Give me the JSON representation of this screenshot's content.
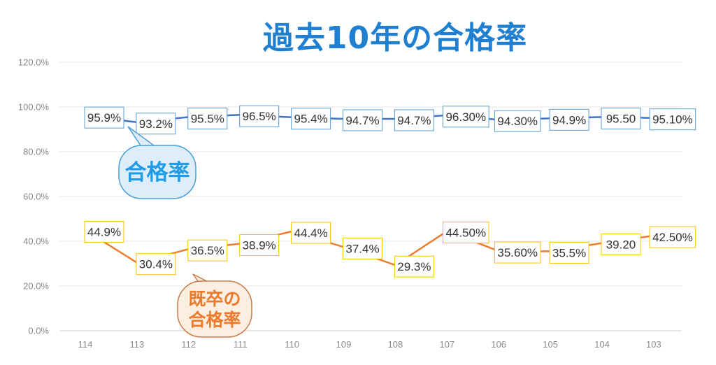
{
  "chart_data": {
    "type": "line",
    "title": "過去10年の合格率",
    "categories": [
      "114",
      "113",
      "112",
      "111",
      "110",
      "109",
      "108",
      "107",
      "106",
      "105",
      "104",
      "103"
    ],
    "ylim": [
      0,
      120
    ],
    "yticks": [
      "0.0%",
      "20.0%",
      "40.0%",
      "60.0%",
      "80.0%",
      "100.0%",
      "120.0%"
    ],
    "grid": true,
    "series": [
      {
        "name": "合格率",
        "color": "#4472c4",
        "label_border": "#5b9bd5",
        "values": [
          95.9,
          93.2,
          95.5,
          96.5,
          95.4,
          94.7,
          94.7,
          96.3,
          94.3,
          94.9,
          95.5,
          95.1
        ],
        "labels": [
          "95.9%",
          "93.2%",
          "95.5%",
          "96.5%",
          "95.4%",
          "94.7%",
          "94.7%",
          "96.30%",
          "94.30%",
          "94.9%",
          "95.50",
          "95.10%"
        ]
      },
      {
        "name": "既卒の合格率",
        "color": "#ed7d31",
        "label_border": "#ffc000",
        "values": [
          44.9,
          30.4,
          36.5,
          38.9,
          44.4,
          37.4,
          29.3,
          44.5,
          35.6,
          35.5,
          39.2,
          42.5
        ],
        "labels": [
          "44.9%",
          "30.4%",
          "36.5%",
          "38.9%",
          "44.4%",
          "37.4%",
          "29.3%",
          "44.50%",
          "35.60%",
          "35.5%",
          "39.20",
          "42.50%"
        ]
      }
    ],
    "callouts": [
      {
        "lines": [
          "合格率"
        ],
        "text_color": "#1f9be8",
        "fill": "#ddeefa",
        "stroke": "#4a9fd8"
      },
      {
        "lines": [
          "既卒の",
          "合格率"
        ],
        "text_color": "#ec7a2c",
        "fill": "#fdeee2",
        "stroke": "#c97a45"
      }
    ]
  }
}
